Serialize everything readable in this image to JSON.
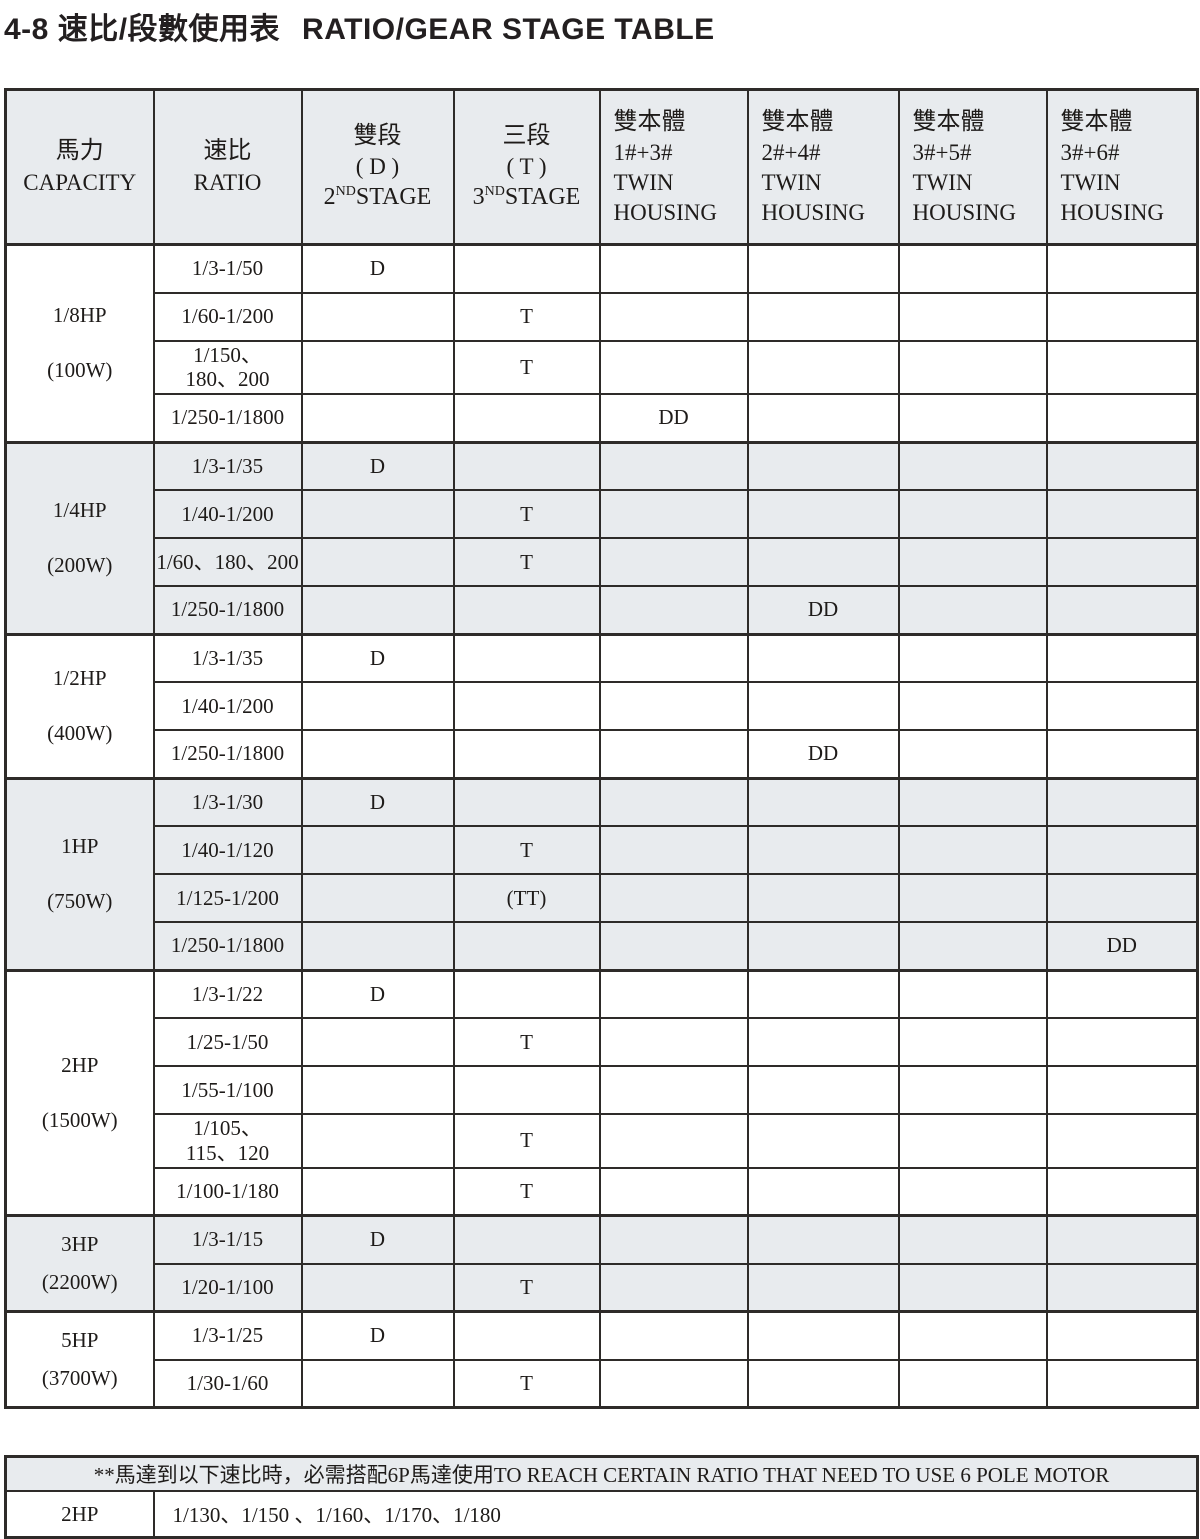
{
  "title": {
    "zh": "4-8 速比/段數使用表",
    "en": "RATIO/GEAR STAGE TABLE"
  },
  "table": {
    "columns": [
      {
        "zh": "馬力",
        "en": "CAPACITY"
      },
      {
        "zh": "速比",
        "en": "RATIO"
      },
      {
        "zh": "雙段",
        "paren": "( D )",
        "base": "2",
        "sup": "ND",
        "word": "STAGE"
      },
      {
        "zh": "三段",
        "paren": "( T )",
        "base": "3",
        "sup": "ND",
        "word": "STAGE"
      },
      {
        "zh": "雙本體",
        "code": "1#+3#",
        "twin": "TWIN",
        "housing": "HOUSING"
      },
      {
        "zh": "雙本體",
        "code": "2#+4#",
        "twin": "TWIN",
        "housing": "HOUSING"
      },
      {
        "zh": "雙本體",
        "code": "3#+5#",
        "twin": "TWIN",
        "housing": "HOUSING"
      },
      {
        "zh": "雙本體",
        "code": "3#+6#",
        "twin": "TWIN",
        "housing": "HOUSING"
      }
    ],
    "groups": [
      {
        "hp": "1/8HP",
        "watt": "(100W)",
        "shaded": false,
        "rows": [
          {
            "ratio": "1/3-1/50",
            "cells": [
              "D",
              "",
              "",
              "",
              "",
              ""
            ]
          },
          {
            "ratio": "1/60-1/200",
            "cells": [
              "",
              "T",
              "",
              "",
              "",
              ""
            ]
          },
          {
            "ratio": "1/150、\n180、200",
            "cells": [
              "",
              "T",
              "",
              "",
              "",
              ""
            ]
          },
          {
            "ratio": "1/250-1/1800",
            "cells": [
              "",
              "",
              "DD",
              "",
              "",
              ""
            ]
          }
        ]
      },
      {
        "hp": "1/4HP",
        "watt": "(200W)",
        "shaded": true,
        "rows": [
          {
            "ratio": "1/3-1/35",
            "cells": [
              "D",
              "",
              "",
              "",
              "",
              ""
            ]
          },
          {
            "ratio": "1/40-1/200",
            "cells": [
              "",
              "T",
              "",
              "",
              "",
              ""
            ]
          },
          {
            "ratio": "1/60、180、200",
            "cells": [
              "",
              "T",
              "",
              "",
              "",
              ""
            ]
          },
          {
            "ratio": "1/250-1/1800",
            "cells": [
              "",
              "",
              "",
              "DD",
              "",
              ""
            ]
          }
        ]
      },
      {
        "hp": "1/2HP",
        "watt": "(400W)",
        "shaded": false,
        "rows": [
          {
            "ratio": "1/3-1/35",
            "cells": [
              "D",
              "",
              "",
              "",
              "",
              ""
            ]
          },
          {
            "ratio": "1/40-1/200",
            "cells": [
              "",
              "",
              "",
              "",
              "",
              ""
            ]
          },
          {
            "ratio": "1/250-1/1800",
            "cells": [
              "",
              "",
              "",
              "DD",
              "",
              ""
            ]
          }
        ]
      },
      {
        "hp": "1HP",
        "watt": "(750W)",
        "shaded": true,
        "rows": [
          {
            "ratio": "1/3-1/30",
            "cells": [
              "D",
              "",
              "",
              "",
              "",
              ""
            ]
          },
          {
            "ratio": "1/40-1/120",
            "cells": [
              "",
              "T",
              "",
              "",
              "",
              ""
            ]
          },
          {
            "ratio": "1/125-1/200",
            "cells": [
              "",
              "(TT)",
              "",
              "",
              "",
              ""
            ]
          },
          {
            "ratio": "1/250-1/1800",
            "cells": [
              "",
              "",
              "",
              "",
              "",
              "DD"
            ]
          }
        ]
      },
      {
        "hp": "2HP",
        "watt": "(1500W)",
        "shaded": false,
        "rows": [
          {
            "ratio": "1/3-1/22",
            "cells": [
              "D",
              "",
              "",
              "",
              "",
              ""
            ]
          },
          {
            "ratio": "1/25-1/50",
            "cells": [
              "",
              "T",
              "",
              "",
              "",
              ""
            ]
          },
          {
            "ratio": "1/55-1/100",
            "cells": [
              "",
              "",
              "",
              "",
              "",
              ""
            ]
          },
          {
            "ratio": "1/105、\n115、120",
            "cells": [
              "",
              "T",
              "",
              "",
              "",
              ""
            ]
          },
          {
            "ratio": "1/100-1/180",
            "cells": [
              "",
              "T",
              "",
              "",
              "",
              ""
            ]
          }
        ]
      },
      {
        "hp": "3HP",
        "watt": "(2200W)",
        "shaded": true,
        "rows": [
          {
            "ratio": "1/3-1/15",
            "cells": [
              "D",
              "",
              "",
              "",
              "",
              ""
            ]
          },
          {
            "ratio": "1/20-1/100",
            "cells": [
              "",
              "T",
              "",
              "",
              "",
              ""
            ]
          }
        ]
      },
      {
        "hp": "5HP",
        "watt": "(3700W)",
        "shaded": false,
        "rows": [
          {
            "ratio": "1/3-1/25",
            "cells": [
              "D",
              "",
              "",
              "",
              "",
              ""
            ]
          },
          {
            "ratio": "1/30-1/60",
            "cells": [
              "",
              "T",
              "",
              "",
              "",
              ""
            ]
          }
        ]
      }
    ]
  },
  "note": {
    "header": "**馬達到以下速比時，必需搭配6P馬達使用TO REACH CERTAIN RATIO THAT NEED TO USE 6 POLE MOTOR",
    "hp": "2HP",
    "ratios": "1/130、1/150 、1/160、1/170、1/180"
  }
}
